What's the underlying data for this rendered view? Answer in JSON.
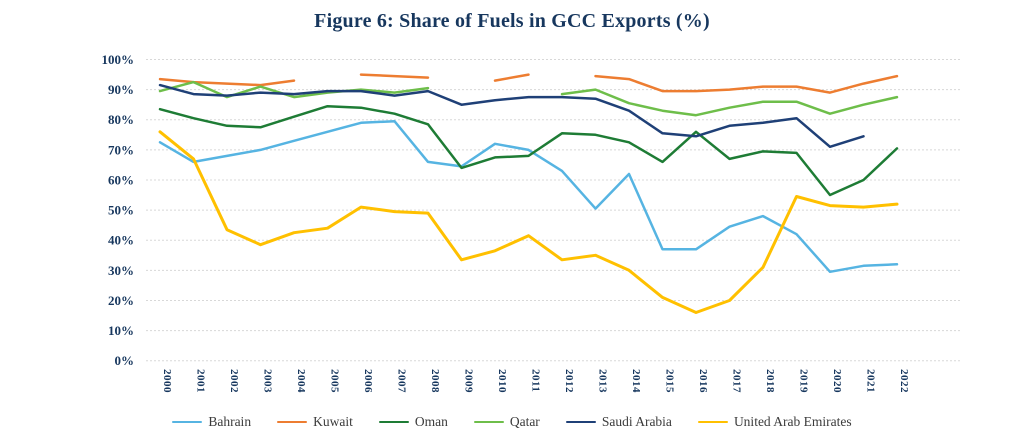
{
  "title": "Figure 6: Share of Fuels in GCC Exports (%)",
  "y_axis": {
    "ticks": [
      "100%",
      "90%",
      "80%",
      "70%",
      "60%",
      "50%",
      "40%",
      "30%",
      "20%",
      "10%",
      "0%"
    ]
  },
  "x_axis": {
    "years": [
      "2000",
      "2001",
      "2002",
      "2003",
      "2004",
      "2005",
      "2006",
      "2007",
      "2008",
      "2009",
      "2010",
      "2011",
      "2012",
      "2013",
      "2014",
      "2015",
      "2016",
      "2017",
      "2018",
      "2019",
      "2020",
      "2021",
      "2022"
    ]
  },
  "chart_data": {
    "type": "line",
    "title": "Figure 6: Share of Fuels in GCC Exports (%)",
    "xlabel": "",
    "ylabel": "",
    "ylim": [
      0,
      100
    ],
    "y_tick_step": 10,
    "grid": true,
    "legend_position": "bottom",
    "x": [
      2000,
      2001,
      2002,
      2003,
      2004,
      2005,
      2006,
      2007,
      2008,
      2009,
      2010,
      2011,
      2012,
      2013,
      2014,
      2015,
      2016,
      2017,
      2018,
      2019,
      2020,
      2021,
      2022
    ],
    "series": [
      {
        "name": "Bahrain",
        "color": "#56B4E2",
        "values": [
          72.5,
          66,
          68,
          70,
          73,
          76,
          79,
          79.5,
          66,
          64.5,
          72,
          70,
          63,
          50.5,
          62,
          37,
          37,
          44.5,
          48,
          42,
          29.5,
          31.5,
          32
        ]
      },
      {
        "name": "Kuwait",
        "color": "#ED7D31",
        "values": [
          93.5,
          92.5,
          92,
          91.5,
          93,
          null,
          95,
          94.5,
          94,
          null,
          93,
          95,
          null,
          94.5,
          93.5,
          89.5,
          89.5,
          90,
          91,
          91,
          89,
          92,
          94.5
        ]
      },
      {
        "name": "Oman",
        "color": "#1E7C35",
        "values": [
          83.5,
          80.5,
          78,
          77.5,
          81,
          84.5,
          84,
          82,
          78.5,
          64,
          67.5,
          68,
          75.5,
          75,
          72.5,
          66,
          76,
          67,
          69.5,
          69,
          55,
          60,
          70.5
        ]
      },
      {
        "name": "Qatar",
        "color": "#6EBE4A",
        "values": [
          89.5,
          92.5,
          87.5,
          91,
          87.5,
          89,
          90,
          89,
          90.5,
          null,
          null,
          null,
          88.5,
          90,
          85.5,
          83,
          81.5,
          84,
          86,
          86,
          82,
          85,
          87.5
        ]
      },
      {
        "name": "Saudi Arabia",
        "color": "#1F4077",
        "values": [
          91.5,
          88.5,
          88,
          89,
          88.5,
          89.5,
          89.5,
          88,
          89.5,
          85,
          86.5,
          87.5,
          87.5,
          87,
          83,
          75.5,
          74.5,
          78,
          79,
          80.5,
          71,
          74.5,
          null
        ]
      },
      {
        "name": "United Arab Emirates",
        "color": "#FFC000",
        "values": [
          76,
          67,
          43.5,
          38.5,
          42.5,
          44,
          51,
          49.5,
          49,
          33.5,
          36.5,
          41.5,
          33.5,
          35,
          30,
          21,
          16,
          20,
          31,
          54.5,
          51.5,
          51,
          52
        ]
      }
    ]
  },
  "colors": {
    "title_text": "#17375E",
    "axis_text": "#17375E",
    "legend_text": "#3B3B3B",
    "gridline": "#D8D8D8",
    "background": "#FFFFFF"
  }
}
